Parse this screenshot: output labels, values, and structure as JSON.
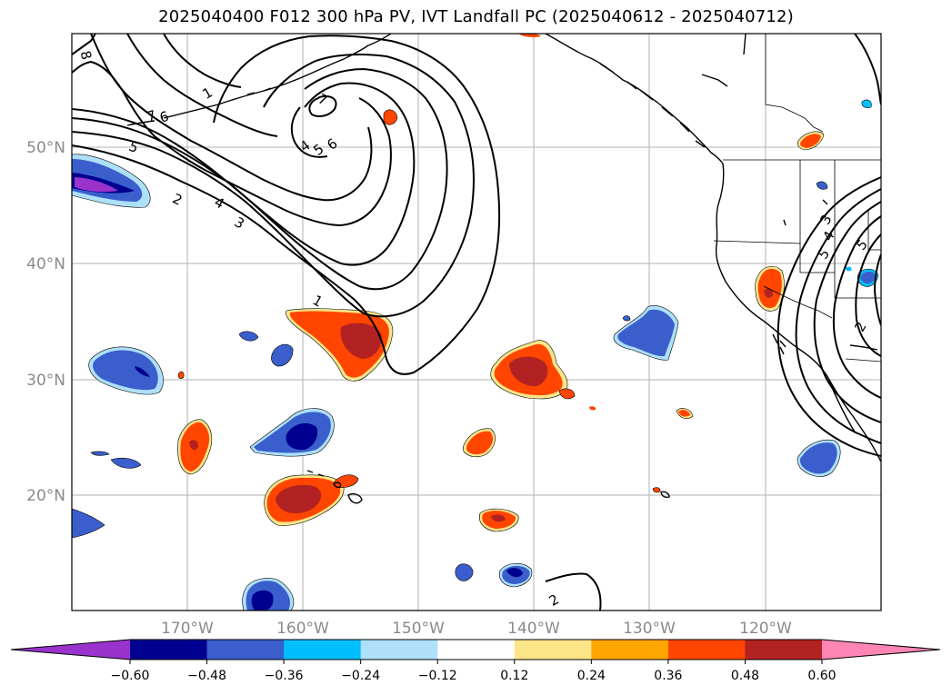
{
  "title": "2025040400 F012 300 hPa PV, IVT Landfall PC (2025040612 - 2025040712)",
  "lat_labels": [
    "50°N",
    "40°N",
    "30°N",
    "20°N"
  ],
  "lon_labels": [
    "170°W",
    "160°W",
    "150°W",
    "140°W",
    "130°W",
    "120°W"
  ],
  "colorbar": {
    "ticks": [
      "−0.60",
      "−0.48",
      "−0.36",
      "−0.24",
      "−0.12",
      "0.12",
      "0.24",
      "0.36",
      "0.48",
      "0.60"
    ],
    "colors": [
      "#9933cc",
      "#000090",
      "#3a5fcd",
      "#00bfff",
      "#aee0fa",
      "#ffffff",
      "#fde68a",
      "#ffa500",
      "#ff4500",
      "#b22222",
      "#ff85b5"
    ]
  },
  "contour_labels": [
    "8",
    "7",
    "6",
    "5",
    "2",
    "4",
    "3",
    "1",
    "7",
    "4",
    "5",
    "6",
    "1",
    "2",
    "3",
    "4",
    "5",
    "5",
    "2"
  ]
}
